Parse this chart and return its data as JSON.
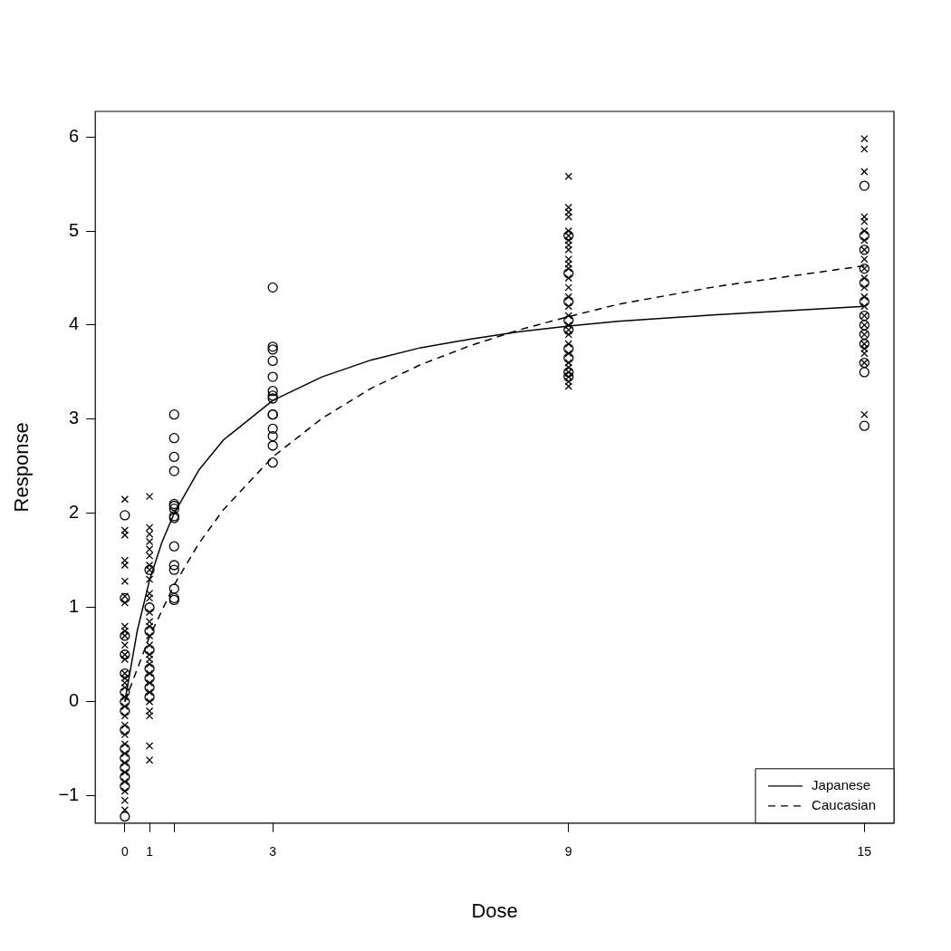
{
  "chart_data": {
    "type": "scatter",
    "xlabel": "Dose",
    "ylabel": "Response",
    "xlim": [
      -0.6,
      15.6
    ],
    "ylim": [
      -1.29,
      6.27
    ],
    "xticks": [
      {
        "value": 0,
        "label": "0"
      },
      {
        "value": 0.5,
        "label": "1"
      },
      {
        "value": 1,
        "label": null
      },
      {
        "value": 3,
        "label": "3"
      },
      {
        "value": 9,
        "label": "9"
      },
      {
        "value": 15,
        "label": "15"
      }
    ],
    "yticks": [
      -1,
      0,
      1,
      2,
      3,
      4,
      5,
      6
    ],
    "grid": false,
    "legend": "bottom right",
    "series": [
      {
        "marker": "circle",
        "color": "#000000",
        "x": [
          0,
          0,
          0,
          0,
          0,
          0,
          0,
          0,
          0,
          0,
          0,
          0,
          0,
          0,
          0,
          0.5,
          0.5,
          0.5,
          0.5,
          0.5,
          0.5,
          0.5,
          0.5,
          1,
          1,
          1,
          1,
          1,
          1,
          1,
          1,
          1,
          1,
          1,
          1,
          1,
          1,
          1,
          3,
          3,
          3,
          3,
          3,
          3,
          3,
          3,
          3,
          3,
          3,
          3,
          3,
          3,
          9,
          9,
          9,
          9,
          9,
          9,
          9,
          9,
          9,
          15,
          15,
          15,
          15,
          15,
          15,
          15,
          15,
          15,
          15,
          15,
          15,
          15
        ],
        "values": [
          1.98,
          1.1,
          0.7,
          0.5,
          0.3,
          0.1,
          0,
          -0.1,
          -0.3,
          -0.5,
          -0.6,
          -0.7,
          -0.8,
          -0.9,
          -1.22,
          1.4,
          1.0,
          0.75,
          0.55,
          0.35,
          0.25,
          0.15,
          0.05,
          3.05,
          2.8,
          2.6,
          2.45,
          2.1,
          2.08,
          2.05,
          1.97,
          1.95,
          1.65,
          1.45,
          1.4,
          1.2,
          1.1,
          1.08,
          4.4,
          3.77,
          3.74,
          3.62,
          3.45,
          3.3,
          3.25,
          3.22,
          3.05,
          3.05,
          2.9,
          2.82,
          2.72,
          2.54,
          4.95,
          4.55,
          4.25,
          4.05,
          3.95,
          3.75,
          3.65,
          3.5,
          3.45,
          5.48,
          4.95,
          4.8,
          4.6,
          4.45,
          4.25,
          4.1,
          4.0,
          3.9,
          3.8,
          3.6,
          3.5,
          2.93
        ]
      },
      {
        "marker": "cross",
        "color": "#000000",
        "x": [
          0,
          0,
          0,
          0,
          0,
          0,
          0,
          0,
          0,
          0,
          0,
          0,
          0,
          0,
          0,
          0,
          0,
          0,
          0,
          0,
          0,
          0,
          0,
          0,
          0,
          0,
          0,
          0,
          0,
          0,
          0,
          0.5,
          0.5,
          0.5,
          0.5,
          0.5,
          0.5,
          0.5,
          0.5,
          0.5,
          0.5,
          0.5,
          0.5,
          0.5,
          0.5,
          0.5,
          0.5,
          0.5,
          0.5,
          0.5,
          0.5,
          0.5,
          0.5,
          0.5,
          0.5,
          0.5,
          0.5,
          0.5,
          9,
          9,
          9,
          9,
          9,
          9,
          9,
          9,
          9,
          9,
          9,
          9,
          9,
          9,
          9,
          9,
          9,
          9,
          9,
          9,
          9,
          9,
          9,
          9,
          9,
          9,
          9,
          9,
          15,
          15,
          15,
          15,
          15,
          15,
          15,
          15,
          15,
          15,
          15,
          15,
          15,
          15,
          15,
          15,
          15,
          15,
          15,
          15,
          15,
          15
        ],
        "values": [
          2.15,
          1.82,
          1.77,
          1.5,
          1.45,
          1.28,
          1.12,
          1.05,
          0.8,
          0.75,
          0.7,
          0.6,
          0.5,
          0.45,
          0.3,
          0.25,
          0.2,
          0.15,
          0.05,
          -0.05,
          -0.15,
          -0.25,
          -0.35,
          -0.45,
          -0.55,
          -0.65,
          -0.75,
          -0.85,
          -1.05,
          -1.15,
          -0.95,
          2.18,
          1.85,
          1.78,
          1.7,
          1.62,
          1.55,
          1.45,
          1.4,
          1.3,
          1.15,
          1.1,
          0.95,
          0.85,
          0.8,
          0.7,
          0.6,
          0.5,
          0.45,
          0.4,
          0.3,
          0.2,
          0.1,
          0,
          -0.1,
          -0.15,
          -0.47,
          -0.62,
          5.58,
          5.25,
          5.2,
          5.15,
          5.0,
          4.95,
          4.9,
          4.85,
          4.8,
          4.7,
          4.65,
          4.6,
          4.5,
          4.4,
          4.3,
          4.2,
          4.1,
          4.0,
          3.95,
          3.9,
          3.8,
          3.7,
          3.6,
          3.55,
          3.5,
          3.45,
          3.4,
          3.35,
          5.98,
          5.87,
          5.63,
          5.15,
          5.1,
          5.0,
          4.9,
          4.8,
          4.7,
          4.6,
          4.5,
          4.4,
          4.3,
          4.2,
          4.1,
          4.0,
          3.9,
          3.8,
          3.75,
          3.7,
          3.6,
          3.05
        ]
      },
      {
        "type": "line",
        "name": "Japanese",
        "line_style": "solid",
        "marker": "none",
        "color": "#000000",
        "x": [
          0,
          0.25,
          0.5,
          0.75,
          1,
          1.5,
          2,
          3,
          4,
          5,
          6,
          7,
          8,
          9,
          10,
          12,
          15
        ],
        "values": [
          0,
          0.75,
          1.29,
          1.69,
          2.0,
          2.46,
          2.78,
          3.2,
          3.45,
          3.63,
          3.76,
          3.85,
          3.93,
          3.99,
          4.04,
          4.11,
          4.2
        ]
      },
      {
        "type": "line",
        "name": "Caucasian",
        "line_style": "dashed",
        "marker": "none",
        "color": "#000000",
        "x": [
          0,
          0.5,
          1,
          1.5,
          2,
          3,
          4,
          5,
          6,
          7,
          8,
          9,
          10,
          12,
          15
        ],
        "values": [
          0,
          0.69,
          1.24,
          1.68,
          2.04,
          2.6,
          3.01,
          3.33,
          3.58,
          3.78,
          3.95,
          4.09,
          4.22,
          4.41,
          4.63
        ]
      }
    ]
  }
}
